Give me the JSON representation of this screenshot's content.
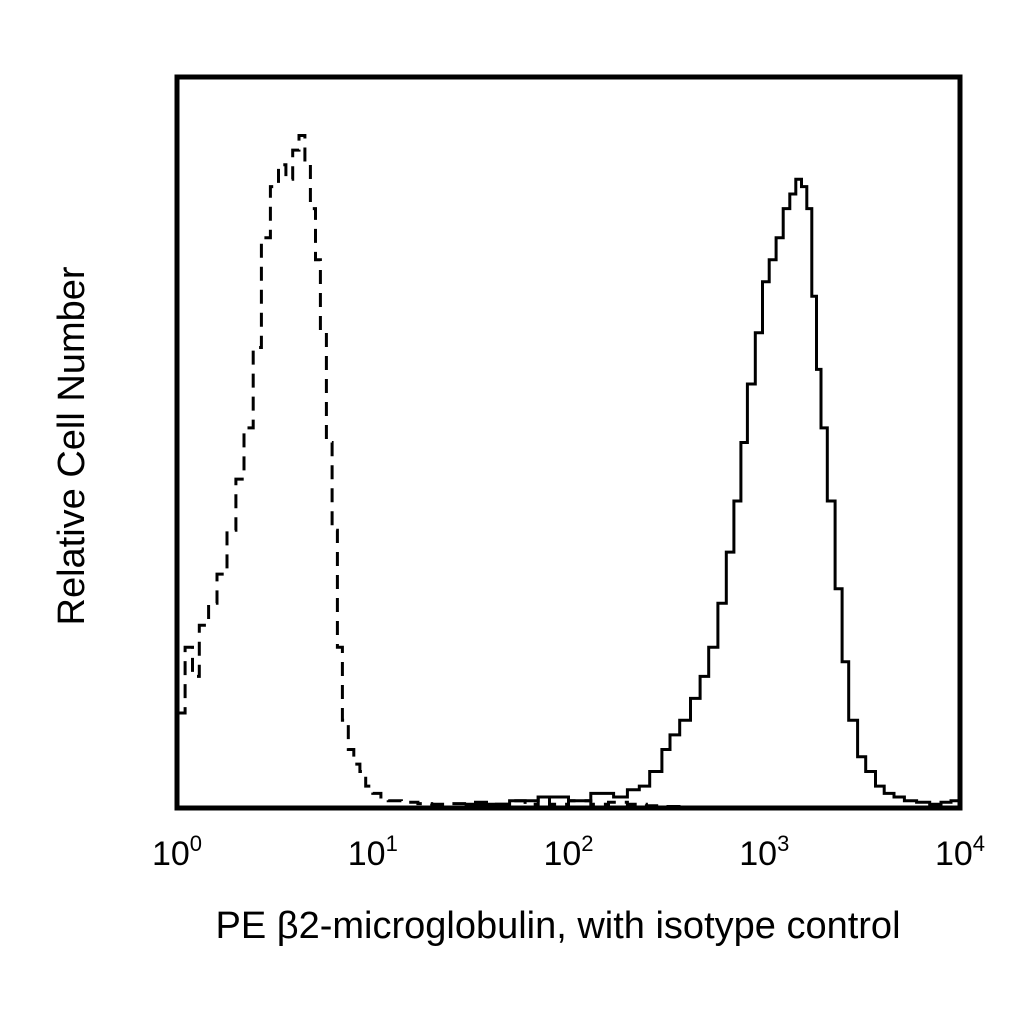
{
  "chart_data": {
    "type": "line",
    "chart_kind": "flow cytometry histogram overlay",
    "xlabel": "PE β2-microglobulin, with isotype control",
    "ylabel": "Relative Cell Number",
    "xscale": "log",
    "xlim": [
      1,
      10000
    ],
    "ylim": [
      0,
      100
    ],
    "y_ticks_shown": false,
    "grid": false,
    "legend": "none",
    "x_ticks": [
      {
        "value": 1,
        "base": "10",
        "exp": "0"
      },
      {
        "value": 10,
        "base": "10",
        "exp": "1"
      },
      {
        "value": 100,
        "base": "10",
        "exp": "2"
      },
      {
        "value": 1000,
        "base": "10",
        "exp": "3"
      },
      {
        "value": 10000,
        "base": "10",
        "exp": "4"
      }
    ],
    "series": [
      {
        "style": "dashed",
        "color": "#000000",
        "x": [
          1,
          1.1,
          1.2,
          1.3,
          1.45,
          1.6,
          1.8,
          2.0,
          2.2,
          2.45,
          2.7,
          3.0,
          3.3,
          3.6,
          3.9,
          4.2,
          4.5,
          4.8,
          5.1,
          5.4,
          5.8,
          6.2,
          6.6,
          7.0,
          7.5,
          8.0,
          8.6,
          9.2,
          10,
          11,
          12,
          14,
          17,
          20,
          25,
          30,
          40,
          50,
          60,
          70,
          80,
          100,
          130,
          160,
          200,
          250,
          300,
          400,
          600,
          1000,
          2000,
          5000,
          10000
        ],
        "y": [
          13,
          22,
          18,
          25,
          28,
          32,
          38,
          45,
          52,
          63,
          78,
          85,
          88,
          86,
          90,
          92,
          88,
          82,
          75,
          65,
          50,
          38,
          22,
          12,
          8,
          6,
          5,
          3,
          2,
          1.5,
          1,
          0.8,
          0.6,
          0.5,
          0.6,
          0.8,
          0.5,
          1,
          0.5,
          1.5,
          0.5,
          1,
          0.5,
          0.8,
          0.5,
          0.3,
          0.2,
          0.1,
          0,
          0,
          0,
          0,
          0
        ]
      },
      {
        "style": "solid",
        "color": "#000000",
        "x": [
          1,
          5,
          10,
          20,
          30,
          50,
          70,
          100,
          130,
          170,
          200,
          230,
          260,
          300,
          330,
          370,
          420,
          470,
          520,
          580,
          640,
          700,
          760,
          820,
          900,
          980,
          1060,
          1150,
          1250,
          1350,
          1450,
          1550,
          1650,
          1750,
          1850,
          1950,
          2100,
          2300,
          2500,
          2700,
          3000,
          3300,
          3700,
          4100,
          4600,
          5200,
          6000,
          7000,
          8000,
          9000,
          10000
        ],
        "y": [
          0,
          0,
          0,
          0,
          0.5,
          1,
          1.5,
          1,
          2,
          1.5,
          2.5,
          3,
          5,
          8,
          10,
          12,
          15,
          18,
          22,
          28,
          35,
          42,
          50,
          58,
          65,
          72,
          75,
          78,
          82,
          84,
          86,
          85,
          82,
          70,
          60,
          52,
          42,
          30,
          20,
          12,
          7,
          5,
          3,
          2,
          1.5,
          1,
          0.8,
          0.5,
          0.8,
          1,
          0.5
        ]
      }
    ]
  }
}
